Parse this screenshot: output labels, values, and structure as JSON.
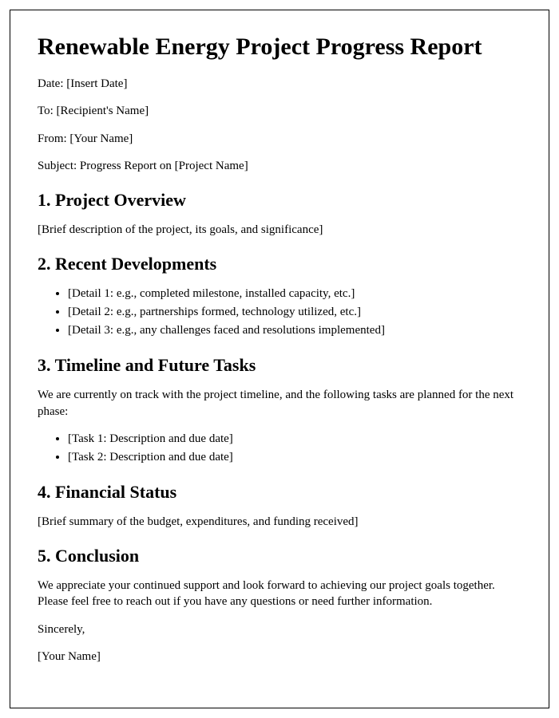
{
  "title": "Renewable Energy Project Progress Report",
  "meta": {
    "date": "Date: [Insert Date]",
    "to": "To: [Recipient's Name]",
    "from": "From: [Your Name]",
    "subject": "Subject: Progress Report on [Project Name]"
  },
  "sections": {
    "overview": {
      "heading": "1. Project Overview",
      "body": "[Brief description of the project, its goals, and significance]"
    },
    "developments": {
      "heading": "2. Recent Developments",
      "items": [
        "[Detail 1: e.g., completed milestone, installed capacity, etc.]",
        "[Detail 2: e.g., partnerships formed, technology utilized, etc.]",
        "[Detail 3: e.g., any challenges faced and resolutions implemented]"
      ]
    },
    "timeline": {
      "heading": "3. Timeline and Future Tasks",
      "intro": "We are currently on track with the project timeline, and the following tasks are planned for the next phase:",
      "items": [
        "[Task 1: Description and due date]",
        "[Task 2: Description and due date]"
      ]
    },
    "financial": {
      "heading": "4. Financial Status",
      "body": "[Brief summary of the budget, expenditures, and funding received]"
    },
    "conclusion": {
      "heading": "5. Conclusion",
      "body": "We appreciate your continued support and look forward to achieving our project goals together. Please feel free to reach out if you have any questions or need further information.",
      "closing": "Sincerely,",
      "signature": "[Your Name]"
    }
  }
}
